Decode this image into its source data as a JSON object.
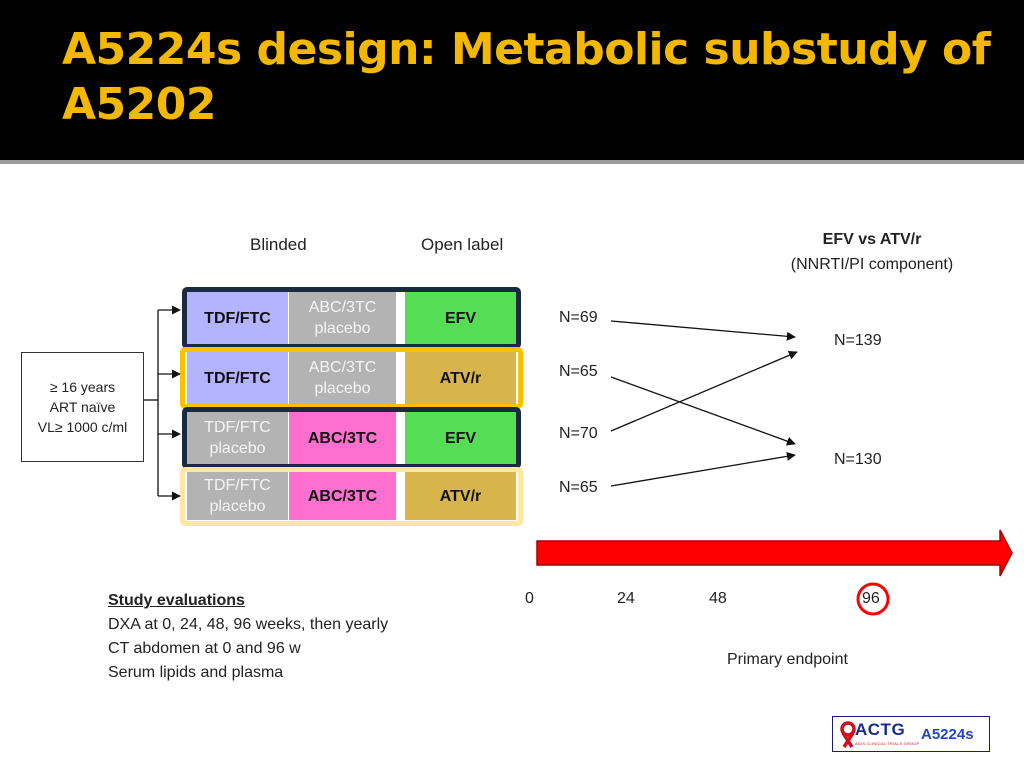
{
  "slide": {
    "title": "A5224s design: Metabolic substudy of A5202"
  },
  "diagram": {
    "column_headers": {
      "blinded": "Blinded",
      "open_label": "Open label"
    },
    "eligibility": {
      "line1": "≥ 16 years",
      "line2": "ART naïve",
      "line3": "VL≥  1000 c/ml"
    },
    "arms": [
      {
        "cells": [
          {
            "line1": "TDF/FTC",
            "line2": ""
          },
          {
            "line1": "ABC/3TC",
            "line2": "placebo"
          },
          {
            "line1": "EFV",
            "line2": ""
          }
        ],
        "n": "N=69"
      },
      {
        "cells": [
          {
            "line1": "TDF/FTC",
            "line2": ""
          },
          {
            "line1": "ABC/3TC",
            "line2": "placebo"
          },
          {
            "line1": "ATV/r",
            "line2": ""
          }
        ],
        "n": "N=65"
      },
      {
        "cells": [
          {
            "line1": "TDF/FTC",
            "line2": "placebo"
          },
          {
            "line1": "ABC/3TC",
            "line2": ""
          },
          {
            "line1": "EFV",
            "line2": ""
          }
        ],
        "n": "N=70"
      },
      {
        "cells": [
          {
            "line1": "TDF/FTC",
            "line2": "placebo"
          },
          {
            "line1": "ABC/3TC",
            "line2": ""
          },
          {
            "line1": "ATV/r",
            "line2": ""
          }
        ],
        "n": "N=65"
      }
    ],
    "comparison": {
      "title": "EFV vs ATV/r",
      "subtitle": "(NNRTI/PI component)",
      "groups": [
        "N=139",
        "N=130"
      ]
    },
    "colors": {
      "tdf_ftc": "#b3b3ff",
      "placebo": "#b3b3b3",
      "abc_3tc": "#ff6fcf",
      "efv": "#55dd55",
      "atv_r": "#d7b54a",
      "efv_frame": "#1a2a40",
      "atv_frame": "#ffc000",
      "timeline_arrow": "#ff0000"
    }
  },
  "timeline": {
    "weeks": [
      "0",
      "24",
      "48",
      "96"
    ],
    "primary_endpoint": "Primary endpoint"
  },
  "evaluations": {
    "heading": "Study evaluations",
    "items": [
      "DXA at 0, 24, 48, 96 weeks, then yearly",
      "CT abdomen at 0 and 96 w",
      "Serum lipids and plasma"
    ]
  },
  "logo": {
    "org": "ACTG",
    "org_sub": "AIDS CLINICAL TRIALS GROUP",
    "study": "A5224s"
  }
}
